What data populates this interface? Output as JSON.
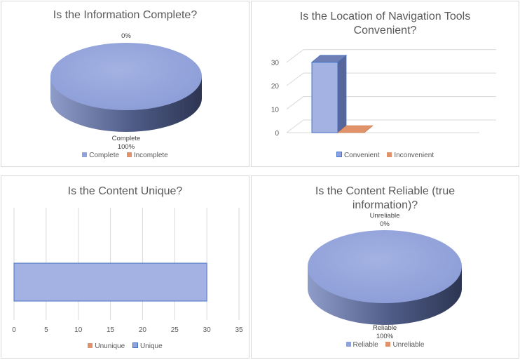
{
  "colors": {
    "blue": "#8fa2dc",
    "blue_dark": "#4a5a8c",
    "orange": "#e0926a",
    "grid": "#d9d9d9",
    "title": "#595959"
  },
  "chart_data": [
    {
      "type": "pie",
      "title": "Is the Information Complete?",
      "slices": [
        {
          "label": "Complete",
          "percent_label": "100%",
          "value": 100,
          "color": "#8fa2dc"
        },
        {
          "label": "Incomplete",
          "percent_label": "0%",
          "value": 0,
          "color": "#e0926a"
        }
      ],
      "legend": [
        "Complete",
        "Incomplete"
      ],
      "legend_position": "bottom",
      "style": "3d"
    },
    {
      "type": "bar",
      "title": "Is the Location of Navigation Tools Convenient?",
      "categories": [
        ""
      ],
      "series": [
        {
          "name": "Convenient",
          "values": [
            30
          ],
          "color": "#8fa2dc"
        },
        {
          "name": "Inconvenient",
          "values": [
            0
          ],
          "color": "#e0926a"
        }
      ],
      "ylim": [
        0,
        35
      ],
      "yticks": [
        "0",
        "10",
        "20",
        "30"
      ],
      "grid": true,
      "legend_position": "bottom",
      "style": "3d"
    },
    {
      "type": "bar",
      "orientation": "horizontal",
      "title": "Is the Content Unique?",
      "categories": [
        ""
      ],
      "series": [
        {
          "name": "Unique",
          "values": [
            30
          ],
          "color": "#8fa2dc"
        },
        {
          "name": "Ununique",
          "values": [
            0
          ],
          "color": "#e0926a"
        }
      ],
      "xlim": [
        0,
        35
      ],
      "xticks": [
        "0",
        "5",
        "10",
        "15",
        "20",
        "25",
        "30",
        "35"
      ],
      "grid": true,
      "legend": [
        "Ununique",
        "Unique"
      ],
      "legend_position": "bottom"
    },
    {
      "type": "pie",
      "title": "Is the Content Reliable (true information)?",
      "slices": [
        {
          "label": "Reliable",
          "percent_label": "100%",
          "value": 100,
          "color": "#8fa2dc"
        },
        {
          "label": "Unreliable",
          "percent_label": "0%",
          "value": 0,
          "color": "#e0926a"
        }
      ],
      "legend": [
        "Reliable",
        "Unreliable"
      ],
      "legend_position": "bottom",
      "style": "3d"
    }
  ],
  "panels": {
    "p1": {
      "title": "Is the Information Complete?"
    },
    "p2": {
      "title_line1": "Is the Location of Navigation Tools",
      "title_line2": "Convenient?"
    },
    "p3": {
      "title": "Is the Content Unique?"
    },
    "p4": {
      "title_line1": "Is the Content Reliable (true",
      "title_line2": "information)?"
    }
  }
}
